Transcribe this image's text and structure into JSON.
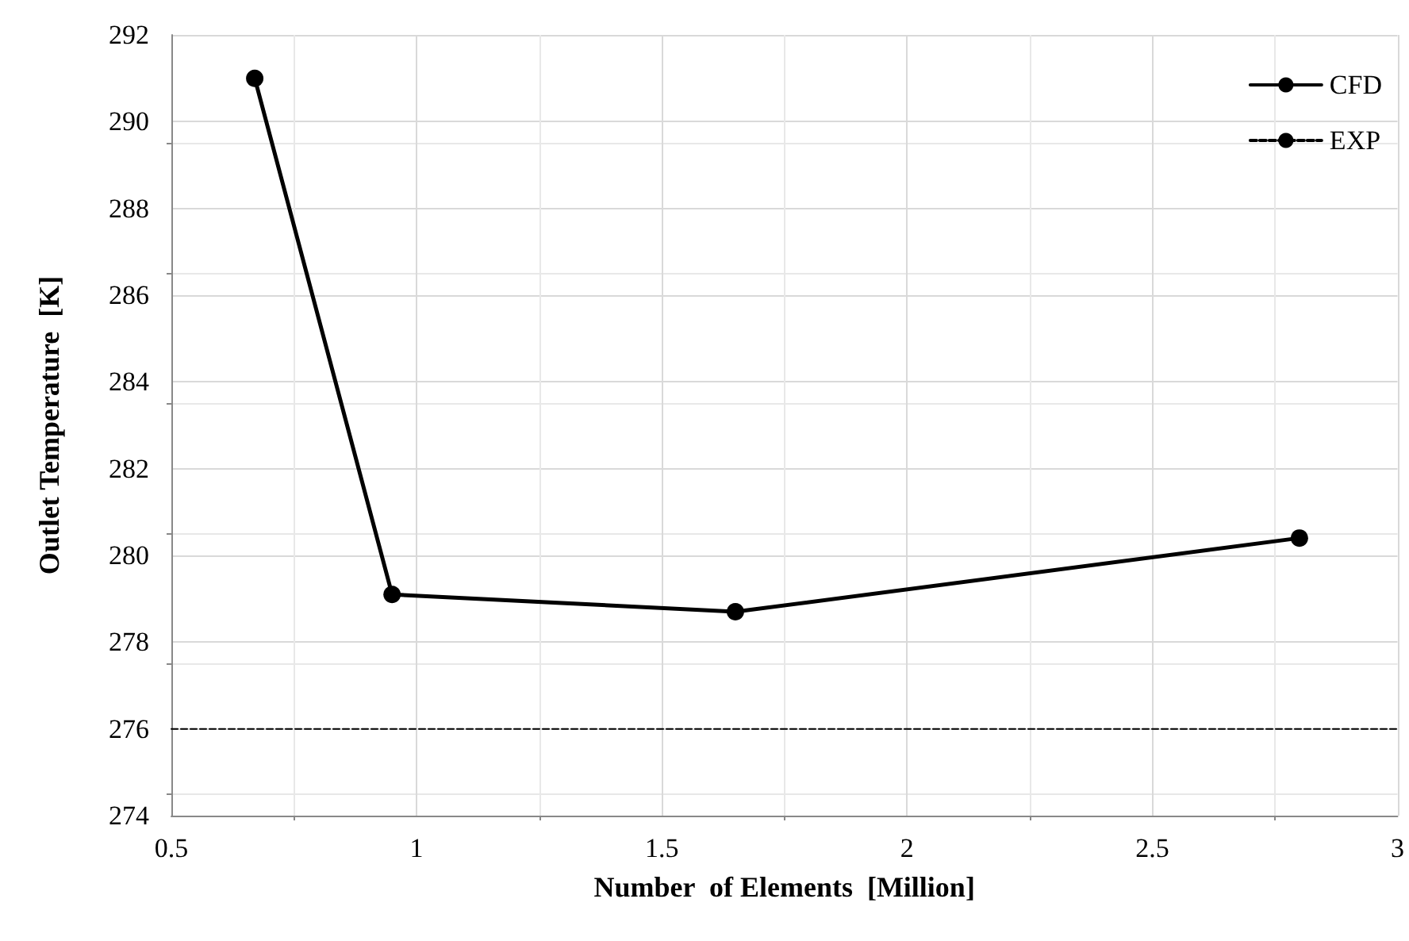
{
  "chart_data": {
    "type": "line",
    "xlabel": "Number  of Elements  [Million]",
    "ylabel": "Outlet Temperature  [K]",
    "xlim": [
      0.5,
      3
    ],
    "xticks": [
      0.5,
      1,
      1.5,
      2,
      2.5,
      3
    ],
    "ylim": [
      274,
      292
    ],
    "yticks": [
      274,
      276,
      278,
      280,
      282,
      284,
      286,
      288,
      290,
      292
    ],
    "grid": true,
    "legend": "top right",
    "series": [
      {
        "name": "CFD",
        "color": "#000000",
        "x": [
          0.67,
          0.95,
          1.65,
          2.8
        ],
        "values": [
          291.0,
          279.1,
          278.7,
          280.4
        ],
        "marker": "circle",
        "line_style": "solid"
      },
      {
        "name": "EXP",
        "color": "#000000",
        "x": [
          0.5,
          3
        ],
        "values": [
          276,
          276
        ],
        "marker": "none",
        "line_style": "dashed"
      }
    ]
  }
}
